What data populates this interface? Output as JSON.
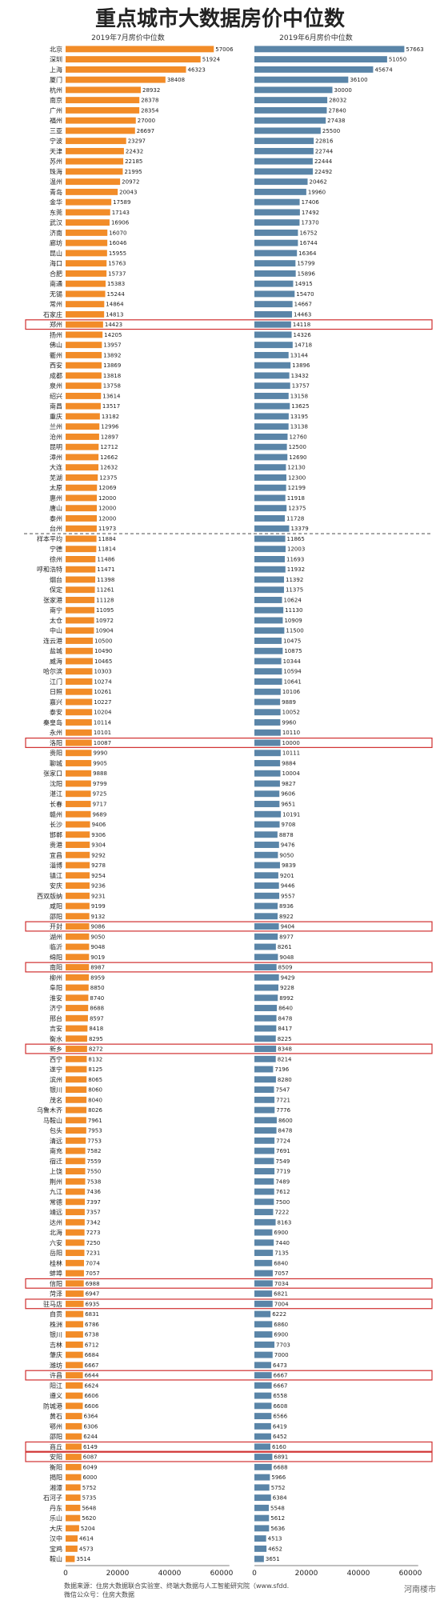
{
  "chart_data": {
    "type": "bar",
    "title": "重点城市大数据房价中位数",
    "orientation": "horizontal",
    "series": [
      {
        "name": "2019年7月房价中位数",
        "color": "#f28c28"
      },
      {
        "name": "2019年6月房价中位数",
        "color": "#5a85a8"
      }
    ],
    "xlim": [
      0,
      60000
    ],
    "xticks": [
      "0",
      "20000",
      "40000",
      "60000"
    ],
    "rows": [
      [
        "北京",
        57006,
        57663
      ],
      [
        "深圳",
        51924,
        51050
      ],
      [
        "上海",
        46323,
        45674
      ],
      [
        "厦门",
        38408,
        36100
      ],
      [
        "杭州",
        28932,
        30000
      ],
      [
        "南京",
        28378,
        28032
      ],
      [
        "广州",
        28354,
        27840
      ],
      [
        "福州",
        27000,
        27438
      ],
      [
        "三亚",
        26697,
        25500
      ],
      [
        "宁波",
        23297,
        22816
      ],
      [
        "天津",
        22432,
        22744
      ],
      [
        "苏州",
        22185,
        22444
      ],
      [
        "珠海",
        21995,
        22492
      ],
      [
        "温州",
        20972,
        20462
      ],
      [
        "青岛",
        20043,
        19960
      ],
      [
        "金华",
        17589,
        17406
      ],
      [
        "东莞",
        17143,
        17492
      ],
      [
        "武汉",
        16906,
        17370
      ],
      [
        "济南",
        16070,
        16752
      ],
      [
        "廊坊",
        16046,
        16744
      ],
      [
        "昆山",
        15955,
        16364
      ],
      [
        "海口",
        15763,
        15799
      ],
      [
        "合肥",
        15737,
        15896
      ],
      [
        "南通",
        15383,
        14915
      ],
      [
        "无锡",
        15244,
        15470
      ],
      [
        "常州",
        14864,
        14667
      ],
      [
        "石家庄",
        14813,
        14463
      ],
      [
        "郑州",
        14423,
        14118
      ],
      [
        "扬州",
        14205,
        14326
      ],
      [
        "佛山",
        13957,
        14718
      ],
      [
        "衢州",
        13892,
        13144
      ],
      [
        "西安",
        13869,
        13896
      ],
      [
        "成都",
        13818,
        13432
      ],
      [
        "泉州",
        13758,
        13757
      ],
      [
        "绍兴",
        13614,
        13158
      ],
      [
        "南昌",
        13517,
        13625
      ],
      [
        "重庆",
        13182,
        13195
      ],
      [
        "兰州",
        12996,
        13138
      ],
      [
        "沧州",
        12897,
        12760
      ],
      [
        "昆明",
        12712,
        12500
      ],
      [
        "漳州",
        12662,
        12690
      ],
      [
        "大连",
        12632,
        12130
      ],
      [
        "芜湖",
        12375,
        12300
      ],
      [
        "太原",
        12069,
        12199
      ],
      [
        "惠州",
        12000,
        11918
      ],
      [
        "唐山",
        12000,
        12375
      ],
      [
        "泰州",
        12000,
        11728
      ],
      [
        "台州",
        11973,
        13379
      ],
      [
        "样本平均",
        11884,
        11865
      ],
      [
        "宁德",
        11814,
        12003
      ],
      [
        "徐州",
        11486,
        11693
      ],
      [
        "呼和浩特",
        11471,
        11932
      ],
      [
        "烟台",
        11398,
        11392
      ],
      [
        "保定",
        11261,
        11375
      ],
      [
        "张家港",
        11128,
        10624
      ],
      [
        "南宁",
        11095,
        11130
      ],
      [
        "太仓",
        10972,
        10909
      ],
      [
        "中山",
        10904,
        11500
      ],
      [
        "连云港",
        10500,
        10475
      ],
      [
        "盐城",
        10490,
        10875
      ],
      [
        "威海",
        10465,
        10344
      ],
      [
        "哈尔滨",
        10303,
        10594
      ],
      [
        "江门",
        10274,
        10641
      ],
      [
        "日照",
        10261,
        10106
      ],
      [
        "嘉兴",
        10227,
        9889
      ],
      [
        "泰安",
        10204,
        10052
      ],
      [
        "秦皇岛",
        10114,
        9960
      ],
      [
        "永州",
        10101,
        10110
      ],
      [
        "洛阳",
        10087,
        10000
      ],
      [
        "贵阳",
        9990,
        10111
      ],
      [
        "聊城",
        9905,
        9884
      ],
      [
        "张家口",
        9888,
        10004
      ],
      [
        "沈阳",
        9799,
        9827
      ],
      [
        "湛江",
        9725,
        9606
      ],
      [
        "长春",
        9717,
        9651
      ],
      [
        "赣州",
        9689,
        10191
      ],
      [
        "长沙",
        9406,
        9708
      ],
      [
        "邯郸",
        9306,
        8878
      ],
      [
        "贵港",
        9304,
        9476
      ],
      [
        "宜昌",
        9292,
        9050
      ],
      [
        "淄博",
        9278,
        9839
      ],
      [
        "镇江",
        9254,
        9201
      ],
      [
        "安庆",
        9236,
        9446
      ],
      [
        "西双版纳",
        9231,
        9557
      ],
      [
        "咸阳",
        9199,
        8936
      ],
      [
        "邵阳",
        9132,
        8922
      ],
      [
        "开封",
        9086,
        9404
      ],
      [
        "湖州",
        9050,
        8977
      ],
      [
        "临沂",
        9048,
        8261
      ],
      [
        "绵阳",
        9019,
        9048
      ],
      [
        "南阳",
        8987,
        8509
      ],
      [
        "柳州",
        8959,
        9429
      ],
      [
        "阜阳",
        8850,
        9228
      ],
      [
        "淮安",
        8740,
        8992
      ],
      [
        "济宁",
        8688,
        8640
      ],
      [
        "邢台",
        8597,
        8478
      ],
      [
        "吉安",
        8418,
        8417
      ],
      [
        "衡水",
        8295,
        8225
      ],
      [
        "新乡",
        8272,
        8348
      ],
      [
        "西宁",
        8132,
        8214
      ],
      [
        "遂宁",
        8125,
        7196
      ],
      [
        "滨州",
        8065,
        8280
      ],
      [
        "银川",
        8060,
        7547
      ],
      [
        "茂名",
        8040,
        7721
      ],
      [
        "乌鲁木齐",
        8026,
        7776
      ],
      [
        "马鞍山",
        7961,
        8600
      ],
      [
        "包头",
        7953,
        8478
      ],
      [
        "清远",
        7753,
        7724
      ],
      [
        "南充",
        7582,
        7691
      ],
      [
        "宿迁",
        7559,
        7549
      ],
      [
        "上饶",
        7550,
        7719
      ],
      [
        "荆州",
        7538,
        7489
      ],
      [
        "九江",
        7436,
        7612
      ],
      [
        "常德",
        7397,
        7500
      ],
      [
        "靖远",
        7357,
        7222
      ],
      [
        "达州",
        7342,
        8163
      ],
      [
        "北海",
        7273,
        6900
      ],
      [
        "六安",
        7250,
        7440
      ],
      [
        "岳阳",
        7231,
        7135
      ],
      [
        "桂林",
        7074,
        6840
      ],
      [
        "蚌埠",
        7057,
        7057
      ],
      [
        "信阳",
        6988,
        7034
      ],
      [
        "菏泽",
        6947,
        6821
      ],
      [
        "驻马店",
        6935,
        7004
      ],
      [
        "自贡",
        6831,
        6222
      ],
      [
        "株洲",
        6786,
        6860
      ],
      [
        "银川",
        6738,
        6900
      ],
      [
        "吉林",
        6712,
        7703
      ],
      [
        "肇庆",
        6684,
        7000
      ],
      [
        "潍坊",
        6667,
        6473
      ],
      [
        "许昌",
        6644,
        6667
      ],
      [
        "阳江",
        6624,
        6667
      ],
      [
        "遵义",
        6606,
        6558
      ],
      [
        "防城港",
        6606,
        6608
      ],
      [
        "黄石",
        6364,
        6566
      ],
      [
        "鄂州",
        6306,
        6419
      ],
      [
        "邵阳",
        6244,
        6452
      ],
      [
        "商丘",
        6149,
        6160
      ],
      [
        "安阳",
        6087,
        6891
      ],
      [
        "衡阳",
        6049,
        6688
      ],
      [
        "揭阳",
        6000,
        5966
      ],
      [
        "湘潭",
        5752,
        5752
      ],
      [
        "石河子",
        5735,
        6384
      ],
      [
        "丹东",
        5648,
        5548
      ],
      [
        "乐山",
        5620,
        5612
      ],
      [
        "大庆",
        5204,
        5636
      ],
      [
        "汉中",
        4614,
        4513
      ],
      [
        "宝鸡",
        4573,
        4652
      ],
      [
        "鞍山",
        3514,
        3651
      ]
    ],
    "highlighted": [
      "郑州",
      "洛阳",
      "开封",
      "南阳",
      "新乡",
      "信阳",
      "驻马店",
      "许昌",
      "商丘",
      "安阳"
    ],
    "reference_row": "样本平均"
  },
  "footer": {
    "source": "数据来源：住房大数据联合实验室、终端大数据与人工智能研究院（www.sfdd.",
    "wechat": "微信公众号：住房大数据",
    "watermark": "河南楼市"
  }
}
